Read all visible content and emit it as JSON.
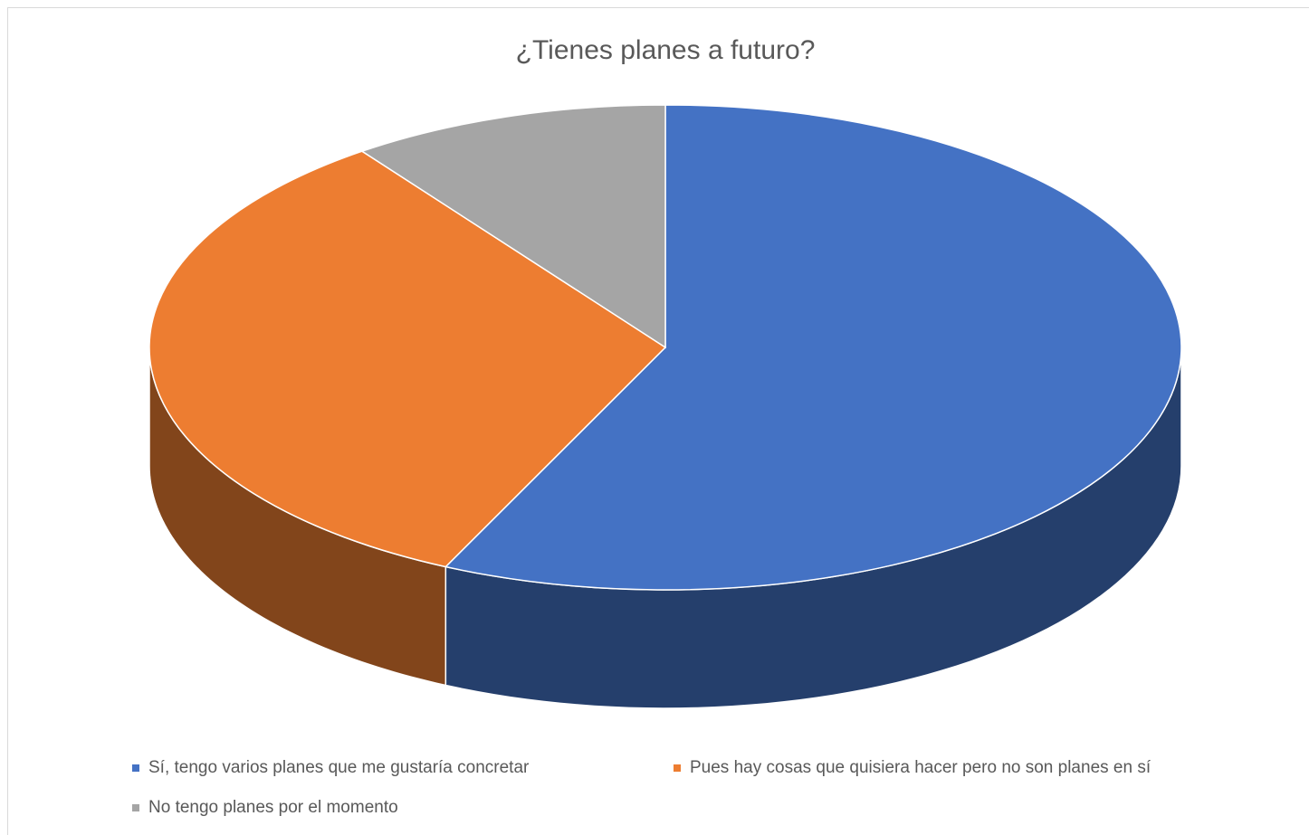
{
  "chart_data": {
    "type": "pie",
    "title": "¿Tienes planes a futuro?",
    "categories": [
      "Sí, tengo varios planes que me gustaría concretar",
      "Pues hay cosas que quisiera hacer pero no son planes en sí",
      "No tengo planes por el momento"
    ],
    "values": [
      57,
      33,
      10
    ],
    "colors": [
      "#4472c4",
      "#ed7d31",
      "#a5a5a5"
    ],
    "legend": "bottom"
  }
}
